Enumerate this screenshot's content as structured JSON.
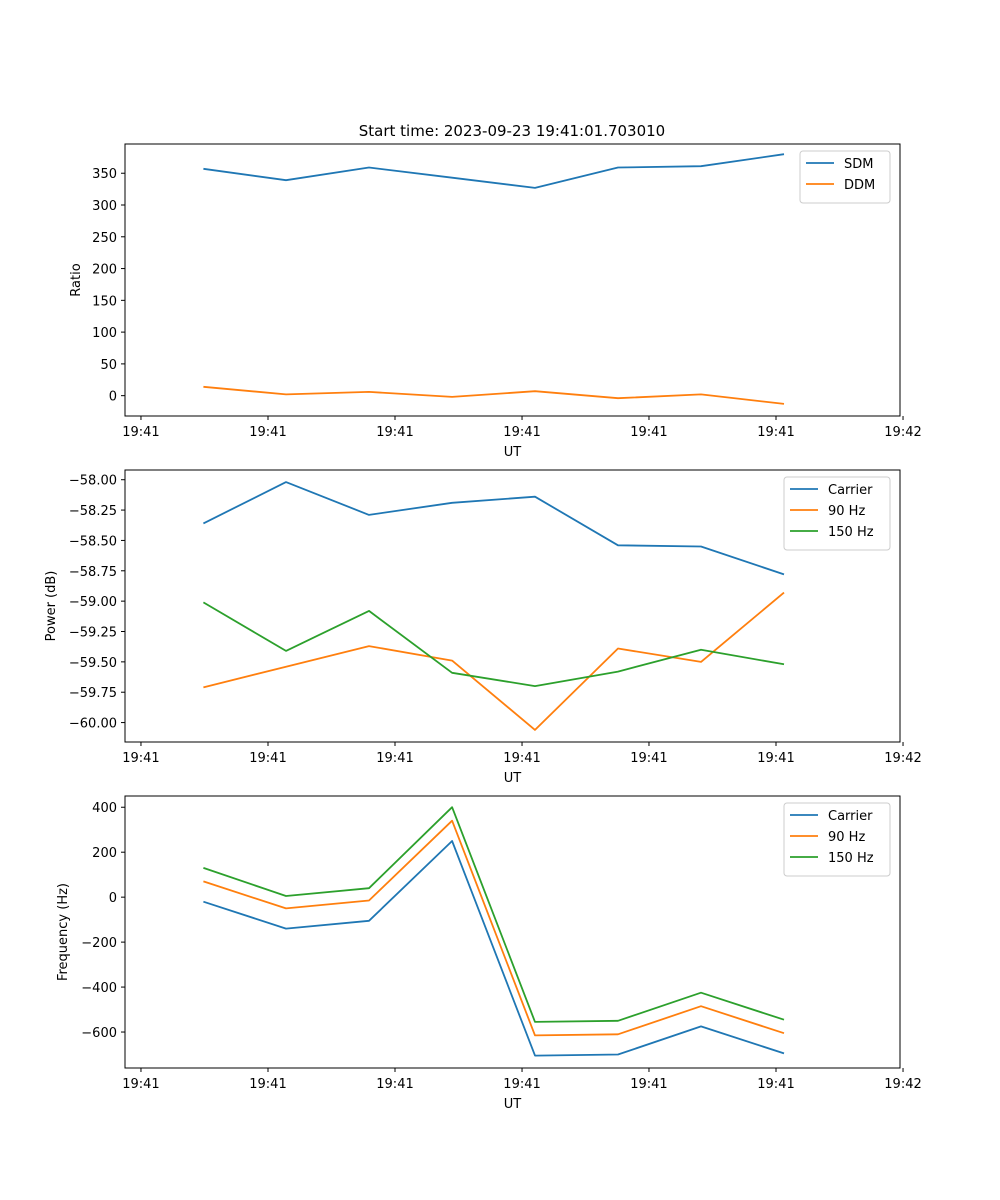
{
  "figure": {
    "title": "Start time: 2023-09-23 19:41:01.703010"
  },
  "chart_data": [
    {
      "type": "line",
      "xlabel": "UT",
      "ylabel": "Ratio",
      "x_tick_labels": [
        "19:41",
        "19:41",
        "19:41",
        "19:41",
        "19:41",
        "19:41",
        "19:42"
      ],
      "y_ticks": [
        0,
        50,
        100,
        150,
        200,
        250,
        300,
        350
      ],
      "ylim": [
        -32,
        396
      ],
      "legend": "top-right",
      "series": [
        {
          "name": "SDM",
          "color": "#1f77b4",
          "values": [
            357,
            339,
            359,
            343,
            327,
            359,
            361,
            380
          ]
        },
        {
          "name": "DDM",
          "color": "#ff7f0e",
          "values": [
            14,
            2,
            6,
            -2,
            7,
            -4,
            2,
            -13
          ]
        }
      ]
    },
    {
      "type": "line",
      "xlabel": "UT",
      "ylabel": "Power (dB)",
      "x_tick_labels": [
        "19:41",
        "19:41",
        "19:41",
        "19:41",
        "19:41",
        "19:41",
        "19:42"
      ],
      "y_ticks": [
        -60.0,
        -59.75,
        -59.5,
        -59.25,
        -59.0,
        -58.75,
        -58.5,
        -58.25,
        -58.0
      ],
      "y_tick_labels": [
        "−60.00",
        "−59.75",
        "−59.50",
        "−59.25",
        "−59.00",
        "−58.75",
        "−58.50",
        "−58.25",
        "−58.00"
      ],
      "ylim": [
        -60.16,
        -57.92
      ],
      "legend": "top-right",
      "series": [
        {
          "name": "Carrier",
          "color": "#1f77b4",
          "values": [
            -58.36,
            -58.02,
            -58.29,
            -58.19,
            -58.14,
            -58.54,
            -58.55,
            -58.78
          ]
        },
        {
          "name": "90 Hz",
          "color": "#ff7f0e",
          "values": [
            -59.71,
            -59.54,
            -59.37,
            -59.49,
            -60.06,
            -59.39,
            -59.5,
            -58.93
          ]
        },
        {
          "name": "150 Hz",
          "color": "#2ca02c",
          "values": [
            -59.01,
            -59.41,
            -59.08,
            -59.59,
            -59.7,
            -59.58,
            -59.4,
            -59.52
          ]
        }
      ]
    },
    {
      "type": "line",
      "xlabel": "UT",
      "ylabel": "Frequency (Hz)",
      "x_tick_labels": [
        "19:41",
        "19:41",
        "19:41",
        "19:41",
        "19:41",
        "19:41",
        "19:42"
      ],
      "y_ticks": [
        -600,
        -400,
        -200,
        0,
        200,
        400
      ],
      "y_tick_labels": [
        "−600",
        "−400",
        "−200",
        "0",
        "200",
        "400"
      ],
      "ylim": [
        -760,
        450
      ],
      "legend": "top-right",
      "series": [
        {
          "name": "Carrier",
          "color": "#1f77b4",
          "values": [
            -20,
            -140,
            -105,
            250,
            -705,
            -700,
            -575,
            -695
          ]
        },
        {
          "name": "90 Hz",
          "color": "#ff7f0e",
          "values": [
            70,
            -50,
            -15,
            340,
            -615,
            -610,
            -485,
            -605
          ]
        },
        {
          "name": "150 Hz",
          "color": "#2ca02c",
          "values": [
            130,
            5,
            40,
            400,
            -555,
            -550,
            -425,
            -545
          ]
        }
      ]
    }
  ]
}
